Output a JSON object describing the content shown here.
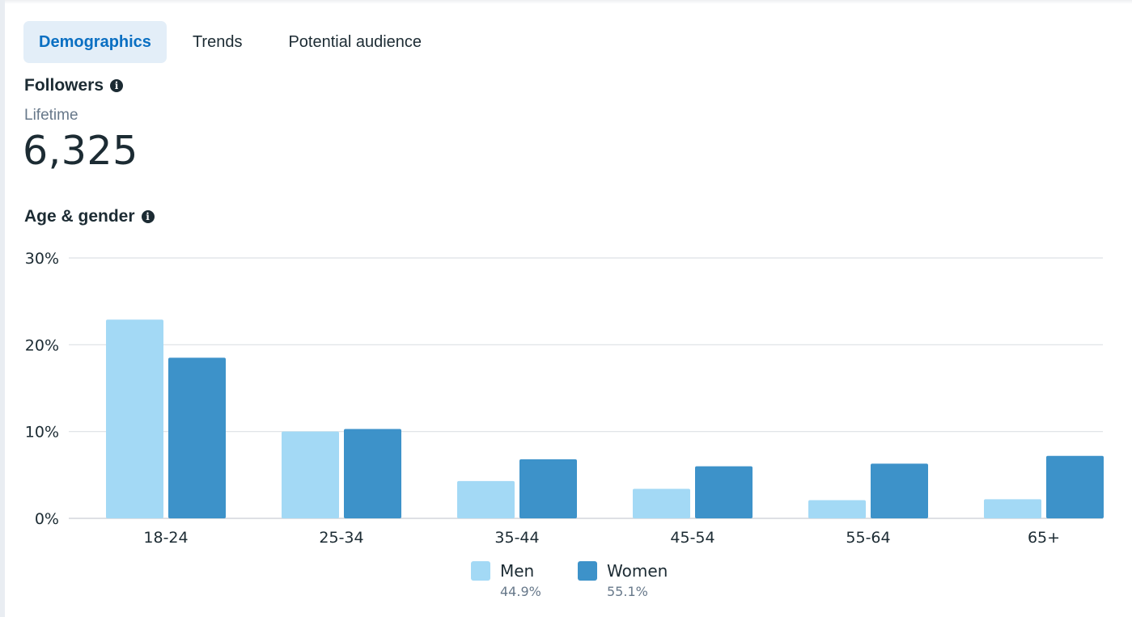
{
  "tabs": [
    {
      "label": "Demographics",
      "active": true
    },
    {
      "label": "Trends",
      "active": false
    },
    {
      "label": "Potential audience",
      "active": false
    }
  ],
  "followers": {
    "title": "Followers",
    "period": "Lifetime",
    "count": "6,325"
  },
  "age_gender": {
    "title": "Age & gender"
  },
  "icons": {
    "info": "info-icon"
  },
  "legend": [
    {
      "name": "Men",
      "share": "44.9%",
      "color": "#a3d9f5"
    },
    {
      "name": "Women",
      "share": "55.1%",
      "color": "#3d92c9"
    }
  ],
  "chart_data": {
    "type": "bar",
    "categories": [
      "18-24",
      "25-34",
      "35-44",
      "45-54",
      "55-64",
      "65+"
    ],
    "series": [
      {
        "name": "Men",
        "color": "#a3d9f5",
        "values": [
          22.9,
          10.0,
          4.3,
          3.4,
          2.1,
          2.2
        ]
      },
      {
        "name": "Women",
        "color": "#3d92c9",
        "values": [
          18.5,
          10.3,
          6.8,
          6.0,
          6.3,
          7.2
        ]
      }
    ],
    "yticks": [
      "0%",
      "10%",
      "20%",
      "30%"
    ],
    "ylim": [
      0,
      30
    ],
    "grid": true,
    "legend_position": "bottom"
  }
}
